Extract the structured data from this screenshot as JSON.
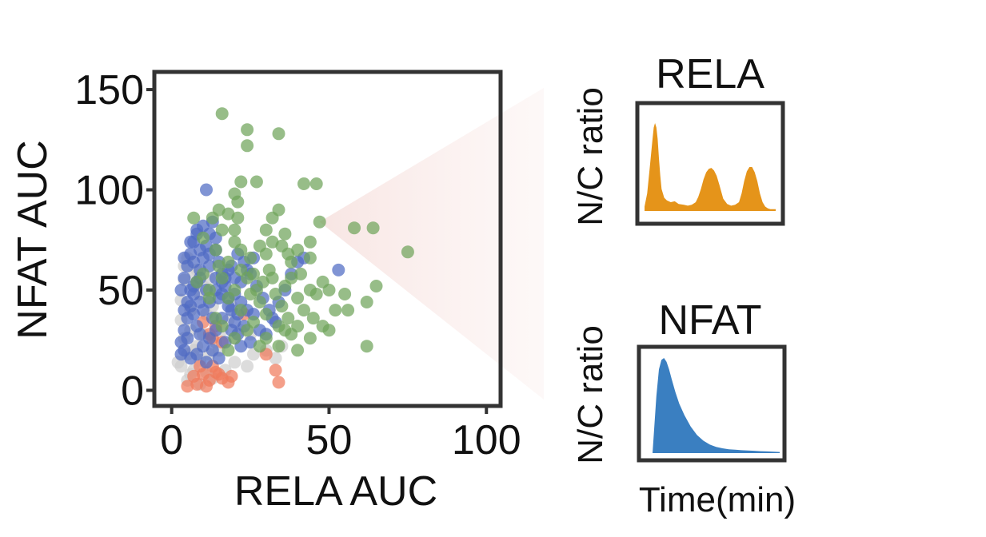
{
  "chart_data": [
    {
      "type": "scatter",
      "title": "",
      "xlabel": "RELA AUC",
      "ylabel": "NFAT AUC",
      "xlim": [
        -5,
        104
      ],
      "ylim": [
        -7,
        158
      ],
      "xticks": [
        "0",
        "50",
        "100"
      ],
      "yticks": [
        "0",
        "50",
        "100",
        "150"
      ],
      "grid": false,
      "legend": "none",
      "callout_point": [
        47,
        84
      ],
      "series": [
        {
          "color": "#cfcfcf",
          "points": [
            [
              3,
              12
            ],
            [
              5,
              18
            ],
            [
              7,
              10
            ],
            [
              4,
              26
            ],
            [
              8,
              22
            ],
            [
              9,
              15
            ],
            [
              6,
              30
            ],
            [
              10,
              28
            ],
            [
              2,
              14
            ],
            [
              11,
              9
            ],
            [
              5,
              5
            ],
            [
              7,
              20
            ],
            [
              12,
              18
            ],
            [
              14,
              24
            ],
            [
              3,
              35
            ],
            [
              6,
              40
            ],
            [
              9,
              48
            ],
            [
              4,
              55
            ],
            [
              8,
              60
            ],
            [
              5,
              66
            ],
            [
              3,
              45
            ],
            [
              11,
              38
            ],
            [
              13,
              42
            ],
            [
              16,
              30
            ],
            [
              15,
              20
            ],
            [
              18,
              35
            ],
            [
              20,
              26
            ],
            [
              10,
              52
            ],
            [
              7,
              58
            ],
            [
              4,
              62
            ],
            [
              26,
              18
            ],
            [
              30,
              20
            ],
            [
              33,
              16
            ],
            [
              35,
              22
            ],
            [
              24,
              12
            ],
            [
              20,
              14
            ],
            [
              17,
              10
            ],
            [
              13,
              6
            ],
            [
              9,
              3
            ],
            [
              6,
              8
            ],
            [
              19,
              42
            ],
            [
              12,
              56
            ],
            [
              22,
              30
            ],
            [
              25,
              28
            ]
          ]
        },
        {
          "color": "#f07a5c",
          "points": [
            [
              8,
              3
            ],
            [
              10,
              8
            ],
            [
              12,
              5
            ],
            [
              14,
              9
            ],
            [
              7,
              7
            ],
            [
              16,
              6
            ],
            [
              18,
              4
            ],
            [
              11,
              2
            ],
            [
              5,
              2
            ],
            [
              13,
              12
            ],
            [
              15,
              8
            ],
            [
              19,
              7
            ],
            [
              12,
              28
            ],
            [
              14,
              32
            ],
            [
              16,
              24
            ],
            [
              10,
              34
            ],
            [
              13,
              26
            ],
            [
              23,
              38
            ],
            [
              33,
              10
            ],
            [
              34,
              4
            ],
            [
              30,
              18
            ],
            [
              9,
              12
            ]
          ]
        },
        {
          "color": "#4f6bc4",
          "points": [
            [
              3,
              24
            ],
            [
              4,
              30
            ],
            [
              5,
              36
            ],
            [
              6,
              42
            ],
            [
              7,
              48
            ],
            [
              8,
              54
            ],
            [
              9,
              60
            ],
            [
              10,
              66
            ],
            [
              11,
              72
            ],
            [
              12,
              78
            ],
            [
              4,
              56
            ],
            [
              5,
              62
            ],
            [
              6,
              68
            ],
            [
              7,
              74
            ],
            [
              8,
              80
            ],
            [
              13,
              84
            ],
            [
              14,
              70
            ],
            [
              15,
              64
            ],
            [
              16,
              58
            ],
            [
              17,
              52
            ],
            [
              18,
              46
            ],
            [
              19,
              40
            ],
            [
              20,
              34
            ],
            [
              21,
              28
            ],
            [
              22,
              22
            ],
            [
              3,
              18
            ],
            [
              4,
              20
            ],
            [
              6,
              16
            ],
            [
              8,
              18
            ],
            [
              10,
              22
            ],
            [
              12,
              26
            ],
            [
              14,
              30
            ],
            [
              16,
              36
            ],
            [
              18,
              42
            ],
            [
              20,
              48
            ],
            [
              22,
              54
            ],
            [
              24,
              60
            ],
            [
              26,
              66
            ],
            [
              9,
              44
            ],
            [
              11,
              50
            ],
            [
              13,
              36
            ],
            [
              15,
              46
            ],
            [
              17,
              56
            ],
            [
              19,
              62
            ],
            [
              21,
              68
            ],
            [
              23,
              64
            ],
            [
              25,
              58
            ],
            [
              27,
              52
            ],
            [
              29,
              46
            ],
            [
              31,
              40
            ],
            [
              33,
              34
            ],
            [
              8,
              32
            ],
            [
              10,
              40
            ],
            [
              12,
              44
            ],
            [
              14,
              50
            ],
            [
              16,
              54
            ],
            [
              18,
              60
            ],
            [
              4,
              40
            ],
            [
              6,
              50
            ],
            [
              7,
              38
            ],
            [
              9,
              28
            ],
            [
              5,
              26
            ],
            [
              3,
              50
            ],
            [
              4,
              66
            ],
            [
              6,
              74
            ],
            [
              8,
              78
            ],
            [
              10,
              82
            ],
            [
              11,
              100
            ],
            [
              7,
              64
            ],
            [
              9,
              56
            ],
            [
              12,
              62
            ],
            [
              14,
              56
            ],
            [
              16,
              48
            ],
            [
              20,
              56
            ],
            [
              22,
              44
            ],
            [
              24,
              40
            ],
            [
              26,
              38
            ],
            [
              28,
              30
            ],
            [
              30,
              28
            ],
            [
              32,
              36
            ],
            [
              34,
              44
            ],
            [
              36,
              50
            ],
            [
              38,
              58
            ],
            [
              40,
              64
            ],
            [
              42,
              66
            ],
            [
              53,
              60
            ],
            [
              13,
              20
            ],
            [
              15,
              16
            ],
            [
              17,
              24
            ],
            [
              19,
              30
            ],
            [
              21,
              38
            ],
            [
              23,
              32
            ],
            [
              25,
              24
            ],
            [
              11,
              14
            ],
            [
              5,
              44
            ],
            [
              7,
              52
            ],
            [
              9,
              70
            ],
            [
              12,
              68
            ],
            [
              14,
              76
            ]
          ]
        },
        {
          "color": "#6fa35a",
          "points": [
            [
              16,
              138
            ],
            [
              24,
              130
            ],
            [
              34,
              128
            ],
            [
              24,
              122
            ],
            [
              22,
              104
            ],
            [
              27,
              104
            ],
            [
              42,
              103
            ],
            [
              46,
              103
            ],
            [
              20,
              98
            ],
            [
              21,
              94
            ],
            [
              15,
              90
            ],
            [
              18,
              88
            ],
            [
              34,
              90
            ],
            [
              13,
              86
            ],
            [
              7,
              86
            ],
            [
              21,
              86
            ],
            [
              32,
              86
            ],
            [
              47,
              84
            ],
            [
              58,
              81
            ],
            [
              64,
              81
            ],
            [
              75,
              69
            ],
            [
              16,
              80
            ],
            [
              20,
              80
            ],
            [
              30,
              80
            ],
            [
              36,
              78
            ],
            [
              10,
              76
            ],
            [
              20,
              74
            ],
            [
              28,
              72
            ],
            [
              35,
              72
            ],
            [
              40,
              70
            ],
            [
              25,
              66
            ],
            [
              30,
              68
            ],
            [
              37,
              68
            ],
            [
              44,
              66
            ],
            [
              22,
              60
            ],
            [
              26,
              58
            ],
            [
              32,
              56
            ],
            [
              38,
              56
            ],
            [
              41,
              58
            ],
            [
              48,
              54
            ],
            [
              29,
              54
            ],
            [
              36,
              52
            ],
            [
              44,
              50
            ],
            [
              50,
              50
            ],
            [
              20,
              50
            ],
            [
              25,
              48
            ],
            [
              33,
              48
            ],
            [
              46,
              48
            ],
            [
              55,
              48
            ],
            [
              65,
              52
            ],
            [
              62,
              44
            ],
            [
              40,
              46
            ],
            [
              18,
              46
            ],
            [
              28,
              44
            ],
            [
              35,
              42
            ],
            [
              42,
              40
            ],
            [
              52,
              40
            ],
            [
              56,
              40
            ],
            [
              22,
              40
            ],
            [
              30,
              38
            ],
            [
              37,
              36
            ],
            [
              45,
              36
            ],
            [
              14,
              36
            ],
            [
              26,
              34
            ],
            [
              34,
              32
            ],
            [
              40,
              32
            ],
            [
              48,
              32
            ],
            [
              50,
              30
            ],
            [
              16,
              32
            ],
            [
              24,
              30
            ],
            [
              36,
              30
            ],
            [
              38,
              28
            ],
            [
              44,
              26
            ],
            [
              30,
              26
            ],
            [
              20,
              26
            ],
            [
              28,
              22
            ],
            [
              34,
              22
            ],
            [
              40,
              20
            ],
            [
              62,
              22
            ],
            [
              18,
              20
            ],
            [
              12,
              46
            ],
            [
              10,
              58
            ],
            [
              15,
              62
            ],
            [
              24,
              56
            ],
            [
              27,
              50
            ],
            [
              31,
              60
            ],
            [
              12,
              50
            ],
            [
              8,
              54
            ],
            [
              18,
              64
            ],
            [
              14,
              70
            ],
            [
              32,
              74
            ],
            [
              44,
              74
            ],
            [
              38,
              64
            ],
            [
              22,
              70
            ],
            [
              16,
              56
            ]
          ]
        }
      ]
    },
    {
      "type": "area",
      "title": "RELA",
      "ylabel": "N/C ratio",
      "color": "#e5941a",
      "x": [
        0,
        0.02,
        0.04,
        0.06,
        0.07,
        0.08,
        0.09,
        0.1,
        0.11,
        0.12,
        0.13,
        0.15,
        0.17,
        0.2,
        0.23,
        0.26,
        0.3,
        0.33,
        0.36,
        0.39,
        0.41,
        0.43,
        0.45,
        0.47,
        0.49,
        0.51,
        0.53,
        0.55,
        0.57,
        0.6,
        0.63,
        0.66,
        0.69,
        0.72,
        0.74,
        0.76,
        0.78,
        0.8,
        0.82,
        0.84,
        0.86,
        0.88,
        0.9,
        0.92,
        0.94,
        0.96,
        0.98,
        1
      ],
      "y": [
        0.05,
        0.2,
        0.5,
        0.8,
        0.95,
        1,
        0.95,
        0.82,
        0.6,
        0.4,
        0.25,
        0.15,
        0.12,
        0.1,
        0.11,
        0.08,
        0.07,
        0.06,
        0.07,
        0.1,
        0.16,
        0.25,
        0.36,
        0.44,
        0.48,
        0.49,
        0.46,
        0.4,
        0.3,
        0.14,
        0.08,
        0.06,
        0.07,
        0.1,
        0.2,
        0.34,
        0.45,
        0.5,
        0.5,
        0.44,
        0.34,
        0.2,
        0.1,
        0.05,
        0.03,
        0.02,
        0.02,
        0.02
      ]
    },
    {
      "type": "area",
      "title": "NFAT",
      "ylabel": "N/C ratio",
      "xlabel": "Time(min)",
      "color": "#3a7fc1",
      "x": [
        0,
        0.03,
        0.05,
        0.07,
        0.09,
        0.11,
        0.13,
        0.15,
        0.18,
        0.21,
        0.25,
        0.3,
        0.35,
        0.4,
        0.45,
        0.5,
        0.55,
        0.6,
        0.65,
        0.7,
        0.75,
        0.8,
        0.85,
        0.9,
        0.95,
        1
      ],
      "y": [
        0,
        0.6,
        0.88,
        0.98,
        1,
        0.96,
        0.88,
        0.78,
        0.64,
        0.52,
        0.4,
        0.28,
        0.19,
        0.13,
        0.09,
        0.065,
        0.05,
        0.04,
        0.035,
        0.03,
        0.028,
        0.024,
        0.02,
        0.018,
        0.015,
        0.012
      ]
    }
  ]
}
